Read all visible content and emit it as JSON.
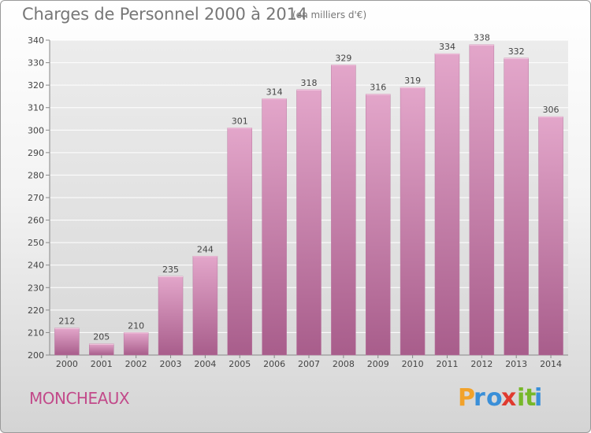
{
  "chart_data": {
    "type": "bar",
    "title": "Charges de Personnel 2000 à 2014",
    "subtitle": "(en milliers d'€)",
    "categories": [
      "2000",
      "2001",
      "2002",
      "2003",
      "2004",
      "2005",
      "2006",
      "2007",
      "2008",
      "2009",
      "2010",
      "2011",
      "2012",
      "2013",
      "2014"
    ],
    "values": [
      212,
      205,
      210,
      235,
      244,
      301,
      314,
      318,
      329,
      316,
      319,
      334,
      338,
      332,
      306
    ],
    "ylim": [
      200,
      340
    ],
    "yticks": [
      200,
      210,
      220,
      230,
      240,
      250,
      260,
      270,
      280,
      290,
      300,
      310,
      320,
      330,
      340
    ],
    "grid": "horizontal",
    "bar_color": "#d68fba",
    "bar_color_bottom": "#a85d8b"
  },
  "commune": "MONCHEAUX",
  "logo": {
    "name": "proxiti-logo",
    "letters": [
      "P",
      "r",
      "o",
      "x",
      "i",
      "t",
      "i"
    ],
    "colors": [
      "#f2a22a",
      "#3a8fd8",
      "#3a8fd8",
      "#e03a2f",
      "#77b82a",
      "#77b82a",
      "#3a8fd8"
    ]
  }
}
